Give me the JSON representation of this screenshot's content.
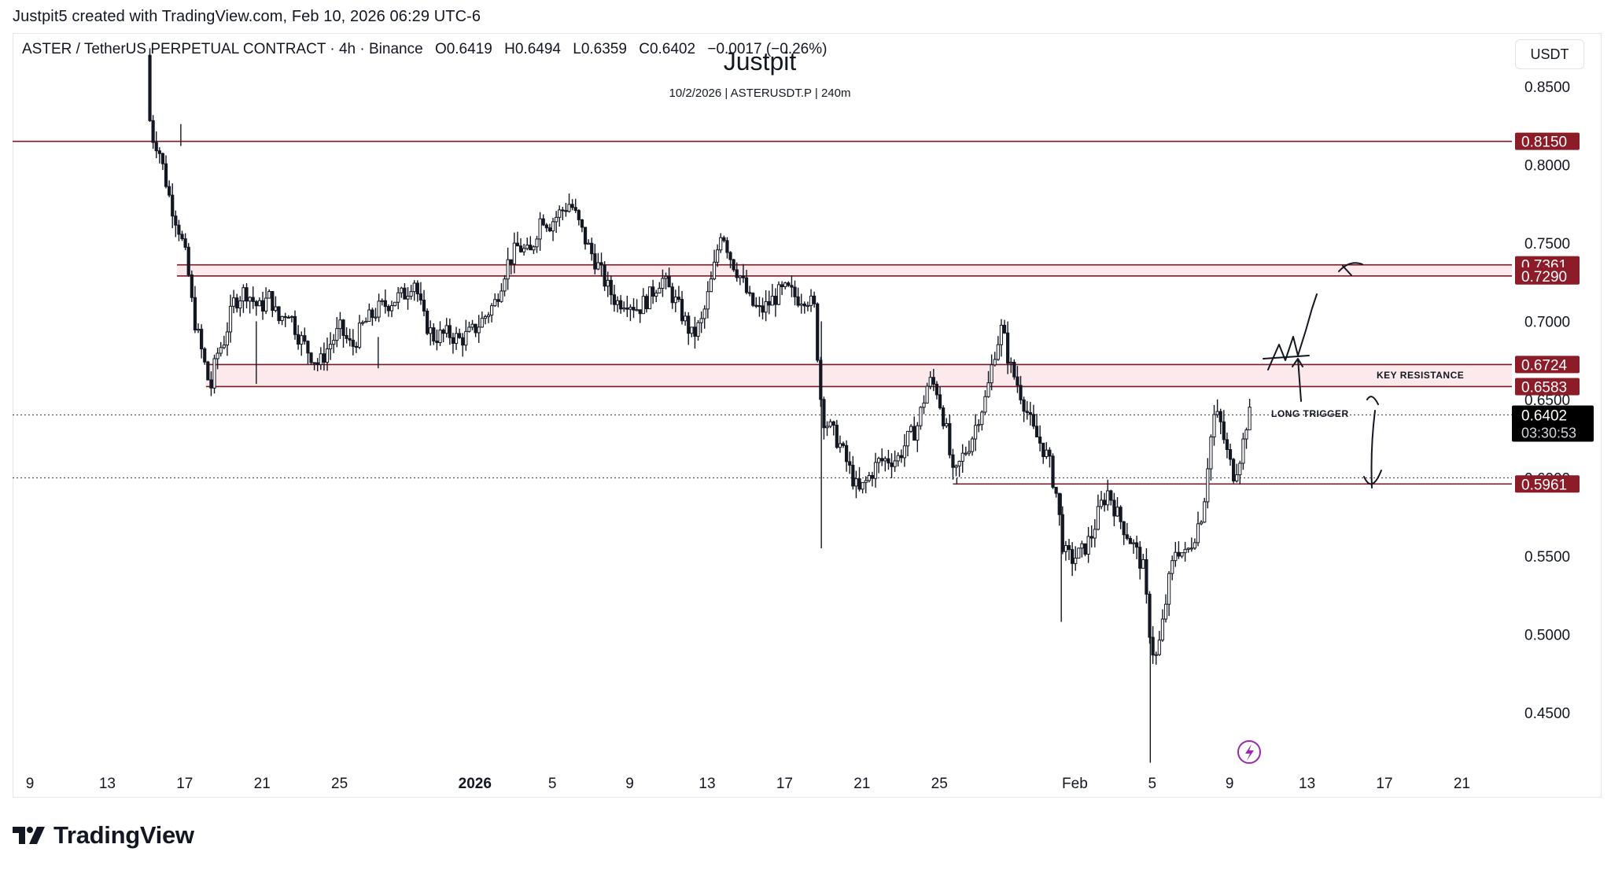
{
  "header": {
    "created_by": "Justpit5 created with TradingView.com, Feb 10, 2026 06:29 UTC-6"
  },
  "legend": {
    "symbol": "ASTER / TetherUS PERPETUAL CONTRACT · 4h · Binance",
    "open": "O0.6419",
    "high": "H0.6494",
    "low": "L0.6359",
    "close": "C0.6402",
    "change": "−0.0017 (−0.26%)"
  },
  "watermark": {
    "title": "Justpit",
    "subtitle": "10/2/2026 | ASTERUSDT.P | 240m"
  },
  "currency": "USDT",
  "brand": "TradingView",
  "colors": {
    "level_line": "#7b1a25",
    "zone_fill": "#fbe9eb",
    "label_bg": "#8b1c28",
    "price_tag_bg": "#000000",
    "candle": "#131722"
  },
  "chart_data": {
    "type": "candlestick",
    "symbol": "ASTERUSDT.P",
    "timeframe": "4h",
    "ylim": [
      0.415,
      0.87
    ],
    "y_ticks": [
      "0.8500",
      "0.8000",
      "0.7500",
      "0.7000",
      "0.6500",
      "0.6000",
      "0.5500",
      "0.5000",
      "0.4500"
    ],
    "x_ticks": [
      {
        "label": "9",
        "day": 0
      },
      {
        "label": "13",
        "day": 4
      },
      {
        "label": "17",
        "day": 8
      },
      {
        "label": "21",
        "day": 12
      },
      {
        "label": "25",
        "day": 16
      },
      {
        "label": "2026",
        "day": 23,
        "bold": true
      },
      {
        "label": "5",
        "day": 27
      },
      {
        "label": "9",
        "day": 31
      },
      {
        "label": "13",
        "day": 35
      },
      {
        "label": "17",
        "day": 39
      },
      {
        "label": "21",
        "day": 43
      },
      {
        "label": "25",
        "day": 47
      },
      {
        "label": "Feb",
        "day": 54
      },
      {
        "label": "5",
        "day": 58
      },
      {
        "label": "9",
        "day": 62
      },
      {
        "label": "13",
        "day": 66
      },
      {
        "label": "17",
        "day": 70
      },
      {
        "label": "21",
        "day": 74
      }
    ],
    "price_path": [
      [
        6.2,
        0.87
      ],
      [
        6.4,
        0.82
      ],
      [
        6.8,
        0.812
      ],
      [
        7.4,
        0.778
      ],
      [
        7.9,
        0.758
      ],
      [
        8.3,
        0.736
      ],
      [
        8.6,
        0.705
      ],
      [
        9.0,
        0.683
      ],
      [
        9.5,
        0.656
      ],
      [
        9.8,
        0.678
      ],
      [
        10.2,
        0.688
      ],
      [
        10.7,
        0.712
      ],
      [
        11.3,
        0.72
      ],
      [
        12.0,
        0.708
      ],
      [
        12.6,
        0.716
      ],
      [
        13.0,
        0.7
      ],
      [
        13.5,
        0.708
      ],
      [
        14.0,
        0.692
      ],
      [
        14.5,
        0.682
      ],
      [
        15.1,
        0.672
      ],
      [
        15.6,
        0.684
      ],
      [
        16.2,
        0.695
      ],
      [
        16.8,
        0.683
      ],
      [
        17.4,
        0.698
      ],
      [
        18.2,
        0.708
      ],
      [
        19.0,
        0.714
      ],
      [
        19.6,
        0.718
      ],
      [
        20.0,
        0.728
      ],
      [
        20.5,
        0.702
      ],
      [
        21.0,
        0.69
      ],
      [
        21.8,
        0.692
      ],
      [
        22.4,
        0.688
      ],
      [
        23.0,
        0.693
      ],
      [
        23.5,
        0.7
      ],
      [
        24.2,
        0.712
      ],
      [
        24.8,
        0.736
      ],
      [
        25.4,
        0.748
      ],
      [
        26.0,
        0.742
      ],
      [
        26.6,
        0.768
      ],
      [
        27.0,
        0.762
      ],
      [
        27.6,
        0.77
      ],
      [
        28.1,
        0.776
      ],
      [
        28.6,
        0.76
      ],
      [
        29.0,
        0.748
      ],
      [
        29.5,
        0.736
      ],
      [
        30.0,
        0.722
      ],
      [
        30.5,
        0.712
      ],
      [
        31.0,
        0.714
      ],
      [
        31.6,
        0.708
      ],
      [
        32.2,
        0.716
      ],
      [
        32.8,
        0.728
      ],
      [
        33.3,
        0.718
      ],
      [
        33.8,
        0.706
      ],
      [
        34.4,
        0.69
      ],
      [
        34.9,
        0.7
      ],
      [
        35.5,
        0.732
      ],
      [
        35.9,
        0.76
      ],
      [
        36.4,
        0.74
      ],
      [
        36.9,
        0.728
      ],
      [
        37.4,
        0.712
      ],
      [
        37.9,
        0.706
      ],
      [
        38.4,
        0.712
      ],
      [
        38.9,
        0.718
      ],
      [
        39.3,
        0.72
      ],
      [
        39.8,
        0.715
      ],
      [
        40.3,
        0.716
      ],
      [
        40.7,
        0.708
      ],
      [
        41.1,
        0.64
      ],
      [
        41.5,
        0.632
      ],
      [
        42.0,
        0.622
      ],
      [
        42.5,
        0.606
      ],
      [
        43.0,
        0.59
      ],
      [
        43.5,
        0.6
      ],
      [
        44.0,
        0.61
      ],
      [
        44.5,
        0.612
      ],
      [
        45.0,
        0.612
      ],
      [
        45.5,
        0.624
      ],
      [
        46.0,
        0.632
      ],
      [
        46.6,
        0.662
      ],
      [
        47.0,
        0.658
      ],
      [
        47.5,
        0.632
      ],
      [
        47.9,
        0.598
      ],
      [
        48.3,
        0.612
      ],
      [
        48.8,
        0.624
      ],
      [
        49.2,
        0.64
      ],
      [
        49.6,
        0.652
      ],
      [
        50.0,
        0.68
      ],
      [
        50.4,
        0.696
      ],
      [
        50.8,
        0.672
      ],
      [
        51.2,
        0.66
      ],
      [
        51.6,
        0.646
      ],
      [
        52.0,
        0.63
      ],
      [
        52.4,
        0.622
      ],
      [
        52.8,
        0.612
      ],
      [
        53.2,
        0.59
      ],
      [
        53.6,
        0.552
      ],
      [
        54.0,
        0.548
      ],
      [
        54.5,
        0.552
      ],
      [
        55.0,
        0.562
      ],
      [
        55.5,
        0.582
      ],
      [
        55.9,
        0.592
      ],
      [
        56.3,
        0.578
      ],
      [
        56.8,
        0.566
      ],
      [
        57.3,
        0.554
      ],
      [
        57.7,
        0.542
      ],
      [
        58.0,
        0.505
      ],
      [
        58.3,
        0.482
      ],
      [
        58.6,
        0.498
      ],
      [
        59.0,
        0.532
      ],
      [
        59.4,
        0.556
      ],
      [
        59.9,
        0.55
      ],
      [
        60.3,
        0.562
      ],
      [
        60.8,
        0.58
      ],
      [
        61.1,
        0.618
      ],
      [
        61.4,
        0.642
      ],
      [
        61.7,
        0.634
      ],
      [
        62.1,
        0.612
      ],
      [
        62.4,
        0.602
      ],
      [
        62.8,
        0.618
      ],
      [
        63.1,
        0.64
      ]
    ],
    "levels": [
      {
        "price": 0.815,
        "label": "0.8150",
        "type": "line",
        "x_start_day": -1.4
      },
      {
        "price_top": 0.7361,
        "price_bottom": 0.729,
        "labels": [
          "0.7361",
          "0.7290"
        ],
        "type": "zone",
        "x_start_day": 7.6
      },
      {
        "price_top": 0.6724,
        "price_bottom": 0.6583,
        "labels": [
          "0.6724",
          "0.6583"
        ],
        "type": "zone",
        "x_start_day": 9.1,
        "annotation": "KEY RESISTANCE"
      },
      {
        "price": 0.5961,
        "label": "0.5961",
        "type": "line",
        "x_start_day": 47.7
      }
    ],
    "last_price": {
      "price": 0.6402,
      "label": "0.6402",
      "countdown": "03:30:53"
    },
    "dotted_lines": [
      0.6402,
      0.6
    ],
    "annotations": [
      "KEY RESISTANCE",
      "LONG TRIGGER"
    ]
  }
}
